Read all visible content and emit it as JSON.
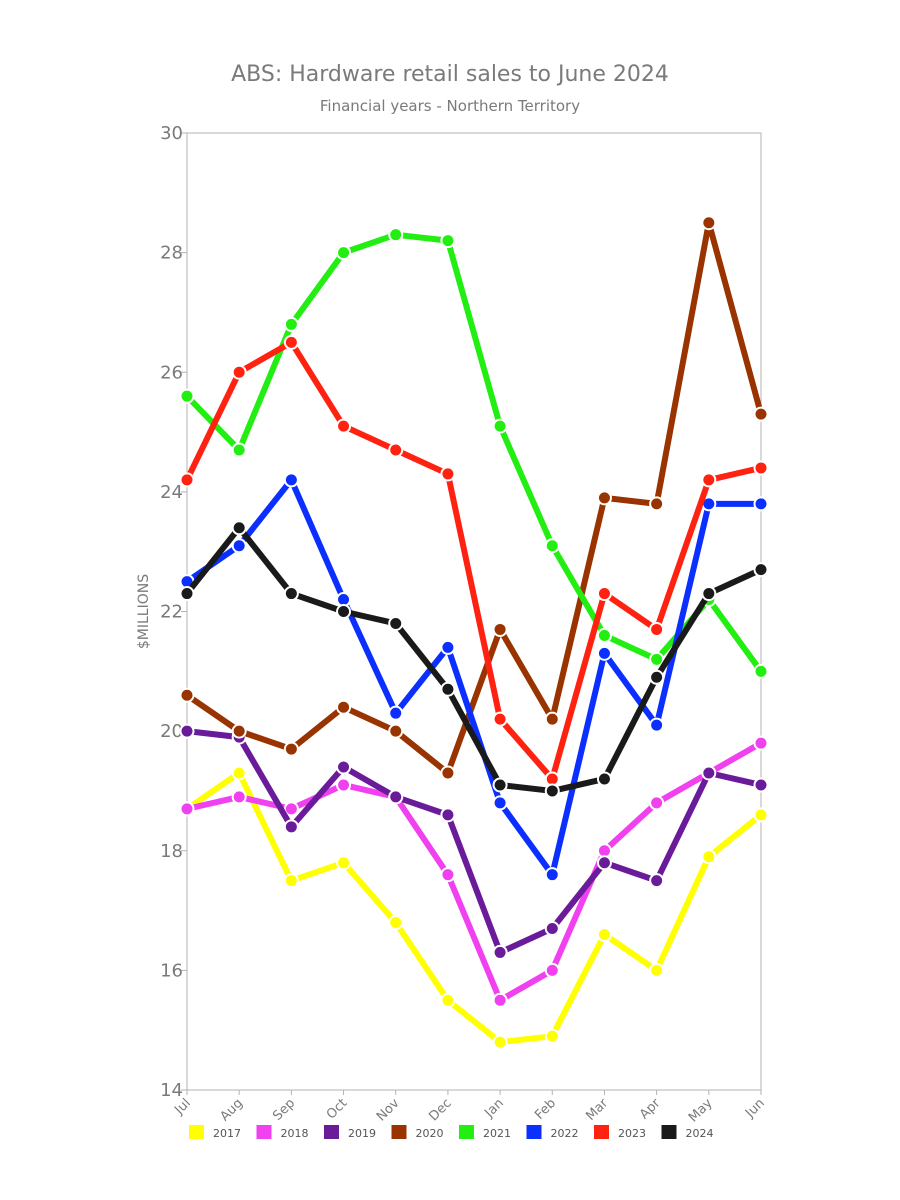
{
  "chart_data": {
    "type": "line",
    "title": "ABS: Hardware retail sales to June 2024",
    "subtitle": "Financial years - Northern Territory",
    "xlabel": "",
    "ylabel": "$MILLIONS",
    "ylim": [
      14,
      30
    ],
    "yticks": [
      "14",
      "16",
      "18",
      "20",
      "22",
      "24",
      "26",
      "28",
      "30"
    ],
    "categories": [
      "Jul",
      "Aug",
      "Sep",
      "Oct",
      "Nov",
      "Dec",
      "Jan",
      "Feb",
      "Mar",
      "Apr",
      "May",
      "Jun"
    ],
    "grid": false,
    "legend_position": "bottom",
    "series": [
      {
        "name": "2017",
        "color": "#ffff00",
        "values": [
          18.7,
          19.3,
          17.5,
          17.8,
          16.8,
          15.5,
          14.8,
          14.9,
          16.6,
          16.0,
          17.9,
          18.6
        ]
      },
      {
        "name": "2018",
        "color": "#f040f0",
        "values": [
          18.7,
          18.9,
          18.7,
          19.1,
          18.9,
          17.6,
          15.5,
          16.0,
          18.0,
          18.8,
          19.3,
          19.8
        ]
      },
      {
        "name": "2019",
        "color": "#6a1b9a",
        "values": [
          20.0,
          19.9,
          18.4,
          19.4,
          18.9,
          18.6,
          16.3,
          16.7,
          17.8,
          17.5,
          19.3,
          19.1
        ]
      },
      {
        "name": "2020",
        "color": "#993300",
        "values": [
          20.6,
          20.0,
          19.7,
          20.4,
          20.0,
          19.3,
          21.7,
          20.2,
          23.9,
          23.8,
          28.5,
          25.3
        ]
      },
      {
        "name": "2021",
        "color": "#22ee11",
        "values": [
          25.6,
          24.7,
          26.8,
          28.0,
          28.3,
          28.2,
          25.1,
          23.1,
          21.6,
          21.2,
          22.2,
          21.0
        ]
      },
      {
        "name": "2022",
        "color": "#0a2fff",
        "values": [
          22.5,
          23.1,
          24.2,
          22.2,
          20.3,
          21.4,
          18.8,
          17.6,
          21.3,
          20.1,
          23.8,
          23.8
        ]
      },
      {
        "name": "2023",
        "color": "#ff2211",
        "values": [
          24.2,
          26.0,
          26.5,
          25.1,
          24.7,
          24.3,
          20.2,
          19.2,
          22.3,
          21.7,
          24.2,
          24.4
        ]
      },
      {
        "name": "2024",
        "color": "#1a1a1a",
        "values": [
          22.3,
          23.4,
          22.3,
          22.0,
          21.8,
          20.7,
          19.1,
          19.0,
          19.2,
          20.9,
          22.3,
          22.7
        ]
      }
    ]
  }
}
